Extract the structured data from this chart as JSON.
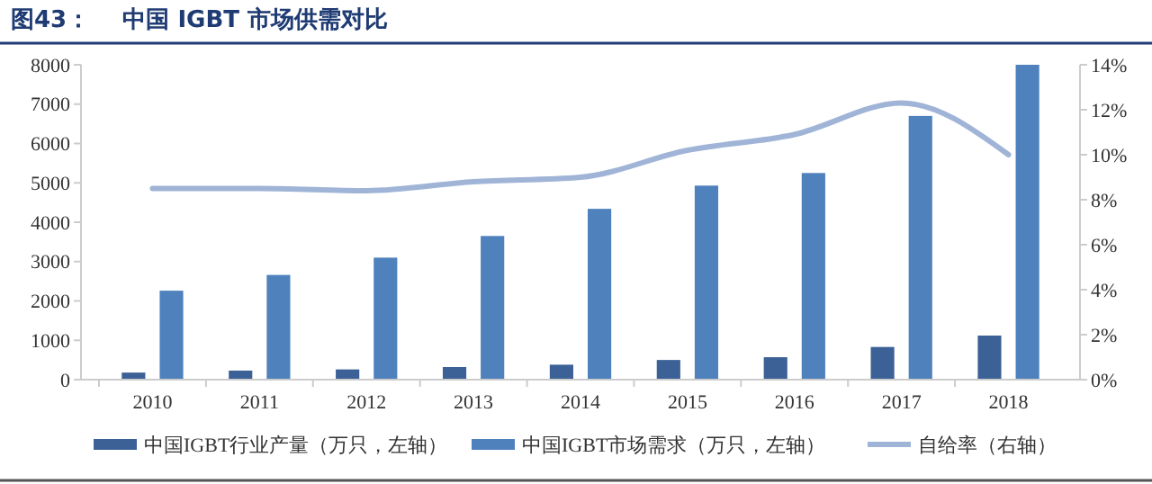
{
  "chart_data": {
    "type": "bar",
    "title": "图43：    中国 IGBT 市场供需对比",
    "categories": [
      "2010",
      "2011",
      "2012",
      "2013",
      "2014",
      "2015",
      "2016",
      "2017",
      "2018"
    ],
    "series": [
      {
        "name": "中国IGBT行业产量（万只，左轴）",
        "color": "#3c6196",
        "values": [
          180,
          230,
          260,
          320,
          380,
          500,
          570,
          830,
          1120
        ]
      },
      {
        "name": "中国IGBT市场需求（万只，左轴）",
        "color": "#4f81bd",
        "values": [
          2260,
          2660,
          3100,
          3650,
          4340,
          4930,
          5250,
          6700,
          8000
        ]
      },
      {
        "name": "自给率（右轴）",
        "type": "line",
        "axis": "y2",
        "color": "#9fb4d6",
        "values": [
          8.5,
          8.5,
          8.4,
          8.8,
          9.0,
          10.2,
          10.9,
          12.3,
          10.0
        ]
      }
    ],
    "ylim": [
      0,
      8000
    ],
    "yticks": [
      0,
      1000,
      2000,
      3000,
      4000,
      5000,
      6000,
      7000,
      8000
    ],
    "y2lim": [
      0,
      14
    ],
    "y2ticks": [
      {
        "value": 0,
        "label": "0%"
      },
      {
        "value": 2,
        "label": "2%"
      },
      {
        "value": 4,
        "label": "4%"
      },
      {
        "value": 6,
        "label": "6%"
      },
      {
        "value": 8,
        "label": "8%"
      },
      {
        "value": 10,
        "label": "10%"
      },
      {
        "value": 12,
        "label": "12%"
      },
      {
        "value": 14,
        "label": "14%"
      }
    ],
    "grid": false,
    "legend": "bottom"
  }
}
